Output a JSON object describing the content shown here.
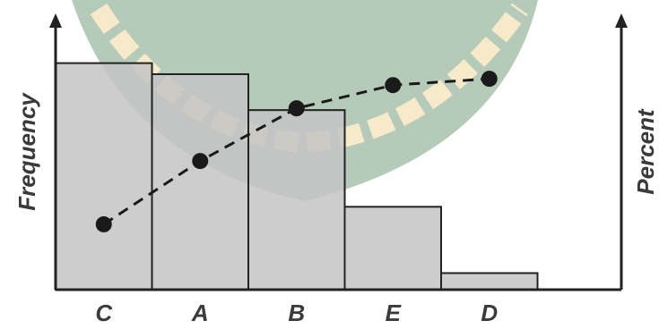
{
  "chart_data": {
    "type": "pareto",
    "ylabel": "Frequency",
    "y2label": "Percent",
    "categories": [
      "C",
      "A",
      "B",
      "E",
      "D"
    ],
    "series": [
      {
        "color": "#c4c4c4",
        "values": [
          82,
          78,
          65,
          30,
          6
        ]
      },
      {
        "color": "#1a1a1a",
        "axis": "y2",
        "values": [
          31,
          61,
          86,
          97,
          100
        ]
      }
    ],
    "ylim": [
      0,
      100
    ],
    "y2lim": [
      0,
      131
    ]
  }
}
